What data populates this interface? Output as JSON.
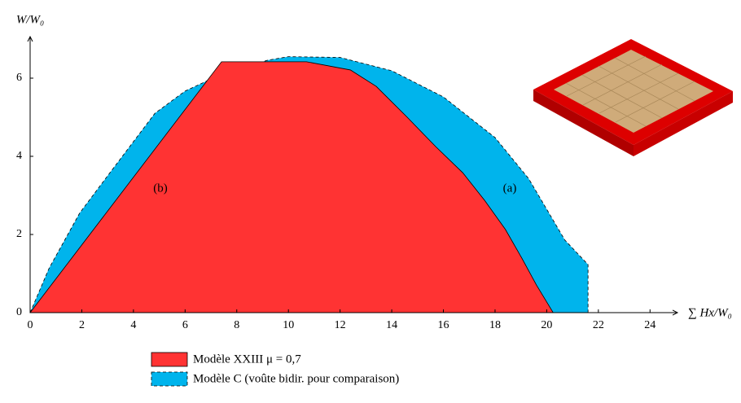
{
  "chart_data": {
    "type": "area",
    "y_label": "W/W₀",
    "x_label": "∑ Hx/W₀",
    "xlim": [
      0,
      25
    ],
    "ylim": [
      0,
      7
    ],
    "xticks": [
      0,
      2,
      4,
      6,
      8,
      10,
      12,
      14,
      16,
      18,
      20,
      22,
      24
    ],
    "yticks": [
      0,
      2,
      4,
      6
    ],
    "annotations": [
      "(a)",
      "(b)"
    ],
    "series": [
      {
        "name": "Modèle C (voûte bidir. pour comparaison)",
        "color": "#00b4ec",
        "dashed": true,
        "x": [
          0,
          0.73,
          1.92,
          3.09,
          4.83,
          6.0,
          7.4,
          9.2,
          10,
          12,
          14,
          16,
          18,
          19.3,
          20.7,
          21.6,
          21.6
        ],
        "values": [
          0,
          1.13,
          2.55,
          3.58,
          5.1,
          5.67,
          6.1,
          6.46,
          6.55,
          6.53,
          6.19,
          5.52,
          4.48,
          3.43,
          1.86,
          1.23,
          0
        ]
      },
      {
        "name": "Modèle XXIII  μ = 0,7",
        "color": "#ff3333",
        "dashed": false,
        "x": [
          0,
          7.41,
          10.7,
          12.4,
          13.4,
          14.6,
          15.7,
          16.75,
          17.6,
          18.4,
          19.05,
          19.6,
          20.25
        ],
        "values": [
          0,
          6.42,
          6.42,
          6.21,
          5.79,
          5.0,
          4.25,
          3.58,
          2.87,
          2.13,
          1.38,
          0.71,
          0
        ]
      }
    ]
  }
}
